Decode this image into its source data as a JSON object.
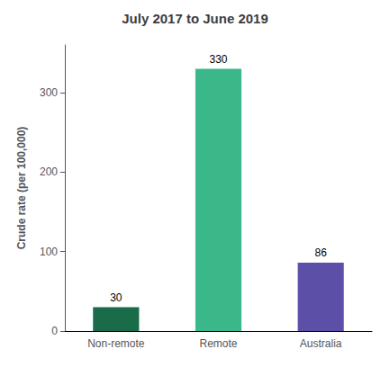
{
  "chart_data": {
    "type": "bar",
    "title": "July 2017 to June 2019",
    "categories": [
      "Non-remote",
      "Remote",
      "Australia"
    ],
    "values": [
      30,
      330,
      86
    ],
    "colors": [
      "#1a6b4a",
      "#3ab88a",
      "#5b4fa8"
    ],
    "ylabel": "Crude rate (per 100,000)",
    "ylim": [
      0,
      360
    ],
    "yticks": [
      0,
      100,
      200,
      300
    ],
    "grid": false,
    "data_labels": true
  }
}
